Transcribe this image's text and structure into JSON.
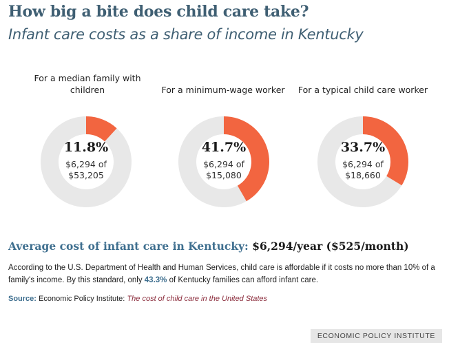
{
  "title": "How big a bite does child care take?",
  "subtitle": "Infant care costs as a share of income in Kentucky",
  "chart_data": {
    "type": "pie",
    "title": "How big a bite does child care take?",
    "subtitle": "Infant care costs as a share of income in Kentucky",
    "colors": {
      "share": "#f26540",
      "remainder": "#e8e8e8"
    },
    "donuts": [
      {
        "label": "For a median family with children",
        "share_pct": 11.8,
        "share_text": "11.8%",
        "cost_text": "$6,294 of",
        "income_text": "$53,205",
        "cost": 6294,
        "income": 53205
      },
      {
        "label": "For a minimum-wage worker",
        "share_pct": 41.7,
        "share_text": "41.7%",
        "cost_text": "$6,294 of",
        "income_text": "$15,080",
        "cost": 6294,
        "income": 15080
      },
      {
        "label": "For a typical child care worker",
        "share_pct": 33.7,
        "share_text": "33.7%",
        "cost_text": "$6,294 of",
        "income_text": "$18,660",
        "cost": 6294,
        "income": 18660
      }
    ]
  },
  "avg_cost": {
    "label": "Average cost of infant care in Kentucky:",
    "value": "$6,294/year ($525/month)"
  },
  "note": {
    "text1": "According to the U.S. Department of Health and Human Services, child care is affordable if it costs no more than 10% of a family's income.  By this standard, only ",
    "highlight": "43.3%",
    "text2": " of Kentucky families can afford infant care."
  },
  "source": {
    "label": "Source:",
    "org": "Economic Policy Institute:",
    "title": "The cost of child care in the United States"
  },
  "footer": "ECONOMIC POLICY INSTITUTE"
}
